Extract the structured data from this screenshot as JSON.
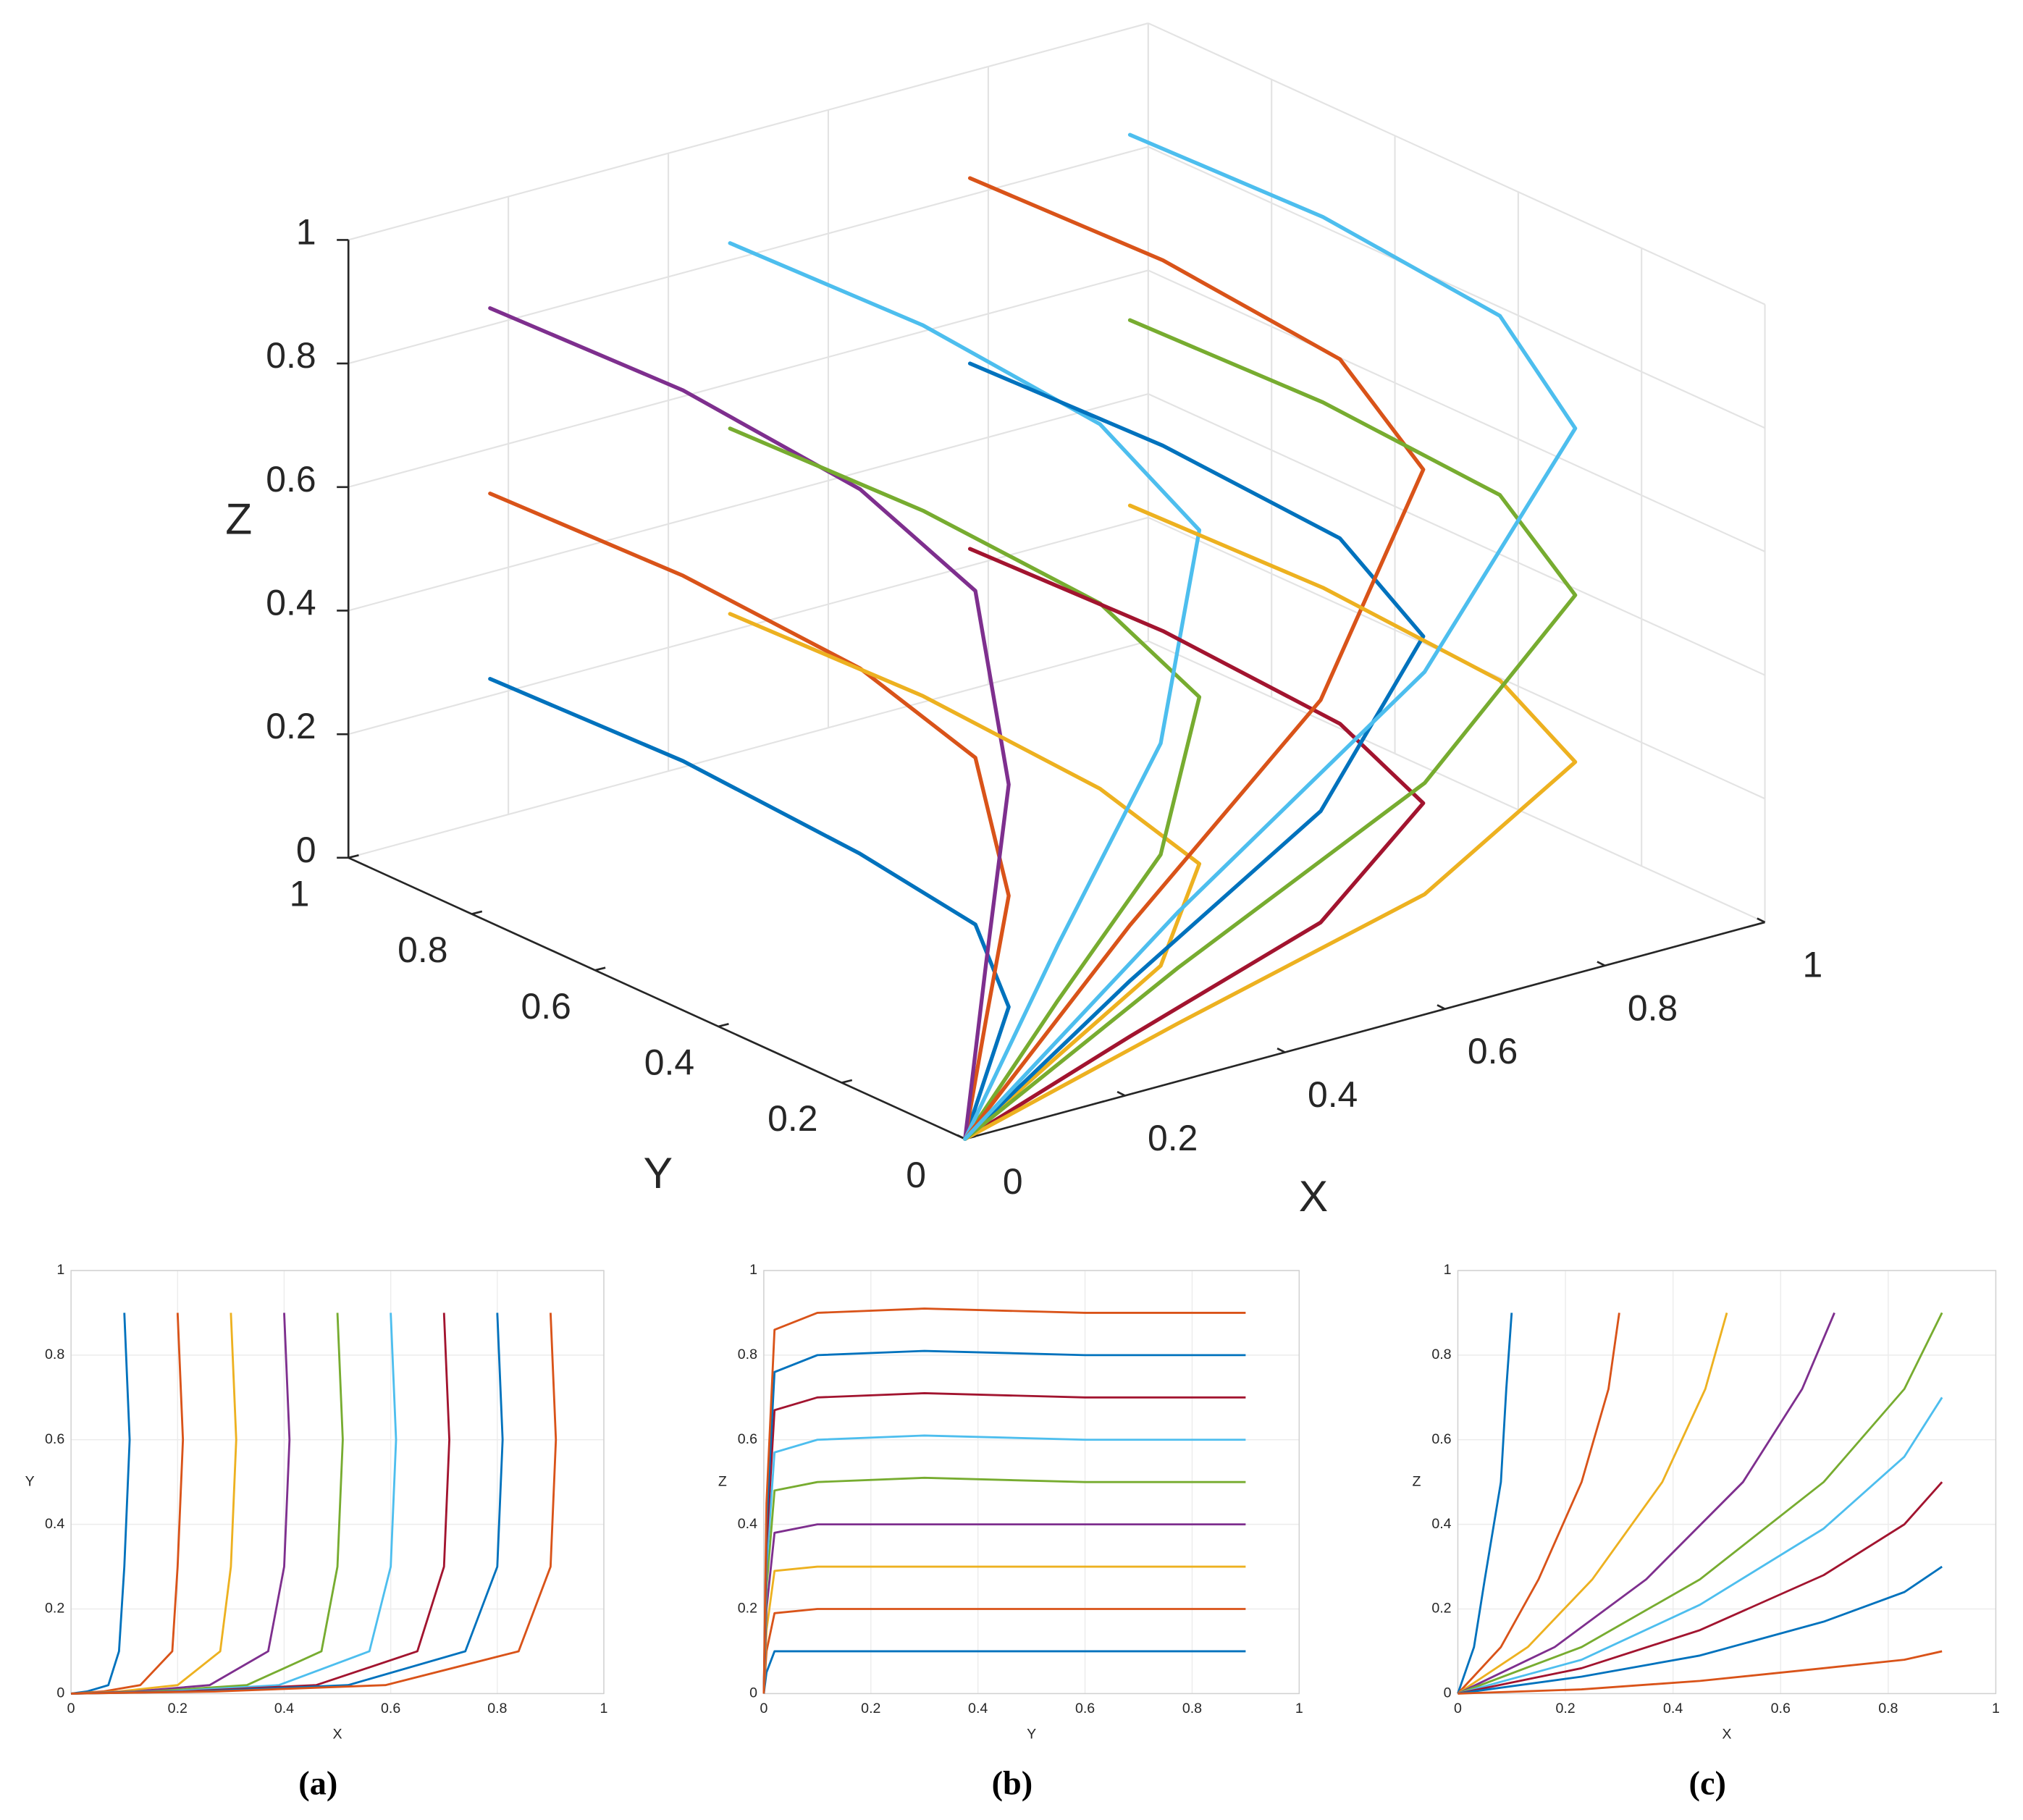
{
  "chart_data": [
    {
      "type": "line3d",
      "xlabel": "X",
      "ylabel": "Y",
      "zlabel": "Z",
      "xlim": [
        0,
        1
      ],
      "ylim": [
        0,
        1
      ],
      "zlim": [
        0,
        1
      ],
      "xticks": [
        0,
        0.2,
        0.4,
        0.6,
        0.8,
        1
      ],
      "yticks": [
        0,
        0.2,
        0.4,
        0.6,
        0.8,
        1
      ],
      "zticks": [
        0,
        0.2,
        0.4,
        0.6,
        0.8,
        1
      ],
      "grid": true,
      "series": [
        {
          "color": "#0072BD",
          "x": [
            0.1,
            0.11,
            0.1,
            0.09,
            0.07,
            0.03,
            0
          ],
          "y": [
            0.9,
            0.6,
            0.3,
            0.1,
            0.02,
            0.005,
            0
          ],
          "z": [
            0.3,
            0.3,
            0.29,
            0.27,
            0.18,
            0.09,
            0
          ]
        },
        {
          "color": "#D95319",
          "x": [
            0.1,
            0.11,
            0.1,
            0.09,
            0.07,
            0.03,
            0
          ],
          "y": [
            0.9,
            0.6,
            0.3,
            0.1,
            0.02,
            0.005,
            0
          ],
          "z": [
            0.6,
            0.6,
            0.59,
            0.54,
            0.36,
            0.18,
            0
          ]
        },
        {
          "color": "#7E2F8E",
          "x": [
            0.1,
            0.11,
            0.1,
            0.09,
            0.07,
            0.03,
            0
          ],
          "y": [
            0.9,
            0.6,
            0.3,
            0.1,
            0.02,
            0.005,
            0
          ],
          "z": [
            0.9,
            0.9,
            0.88,
            0.81,
            0.54,
            0.27,
            0
          ]
        },
        {
          "color": "#EDB120",
          "x": [
            0.4,
            0.41,
            0.4,
            0.37,
            0.26,
            0.12,
            0
          ],
          "y": [
            0.9,
            0.6,
            0.3,
            0.1,
            0.02,
            0.005,
            0
          ],
          "z": [
            0.3,
            0.3,
            0.29,
            0.27,
            0.18,
            0.09,
            0
          ]
        },
        {
          "color": "#77AC30",
          "x": [
            0.4,
            0.41,
            0.4,
            0.37,
            0.26,
            0.12,
            0
          ],
          "y": [
            0.9,
            0.6,
            0.3,
            0.1,
            0.02,
            0.005,
            0
          ],
          "z": [
            0.6,
            0.6,
            0.59,
            0.54,
            0.36,
            0.18,
            0
          ]
        },
        {
          "color": "#4DBEEE",
          "x": [
            0.4,
            0.41,
            0.4,
            0.37,
            0.26,
            0.12,
            0
          ],
          "y": [
            0.9,
            0.6,
            0.3,
            0.1,
            0.02,
            0.005,
            0
          ],
          "z": [
            0.9,
            0.9,
            0.88,
            0.81,
            0.54,
            0.27,
            0
          ]
        },
        {
          "color": "#A2142F",
          "x": [
            0.7,
            0.71,
            0.7,
            0.65,
            0.46,
            0.21,
            0
          ],
          "y": [
            0.9,
            0.6,
            0.3,
            0.1,
            0.02,
            0.005,
            0
          ],
          "z": [
            0.3,
            0.3,
            0.29,
            0.27,
            0.18,
            0.09,
            0
          ]
        },
        {
          "color": "#0072BD",
          "x": [
            0.7,
            0.71,
            0.7,
            0.65,
            0.46,
            0.21,
            0
          ],
          "y": [
            0.9,
            0.6,
            0.3,
            0.1,
            0.02,
            0.005,
            0
          ],
          "z": [
            0.6,
            0.6,
            0.59,
            0.54,
            0.36,
            0.18,
            0
          ]
        },
        {
          "color": "#D95319",
          "x": [
            0.7,
            0.71,
            0.7,
            0.65,
            0.46,
            0.21,
            0
          ],
          "y": [
            0.9,
            0.6,
            0.3,
            0.1,
            0.02,
            0.005,
            0
          ],
          "z": [
            0.9,
            0.9,
            0.88,
            0.81,
            0.54,
            0.27,
            0
          ]
        },
        {
          "color": "#EDB120",
          "x": [
            0.9,
            0.91,
            0.9,
            0.84,
            0.59,
            0.27,
            0
          ],
          "y": [
            0.9,
            0.6,
            0.3,
            0.1,
            0.02,
            0.005,
            0
          ],
          "z": [
            0.3,
            0.3,
            0.29,
            0.27,
            0.18,
            0.09,
            0
          ]
        },
        {
          "color": "#77AC30",
          "x": [
            0.9,
            0.91,
            0.9,
            0.84,
            0.59,
            0.27,
            0
          ],
          "y": [
            0.9,
            0.6,
            0.3,
            0.1,
            0.02,
            0.005,
            0
          ],
          "z": [
            0.6,
            0.6,
            0.59,
            0.54,
            0.36,
            0.18,
            0
          ]
        },
        {
          "color": "#4DBEEE",
          "x": [
            0.9,
            0.91,
            0.9,
            0.84,
            0.59,
            0.27,
            0
          ],
          "y": [
            0.9,
            0.6,
            0.3,
            0.1,
            0.02,
            0.005,
            0
          ],
          "z": [
            0.9,
            0.9,
            0.88,
            0.81,
            0.54,
            0.27,
            0
          ]
        }
      ]
    },
    {
      "type": "line",
      "caption": "(a)",
      "xlabel": "X",
      "ylabel": "Y",
      "xlim": [
        0,
        1
      ],
      "ylim": [
        0,
        1
      ],
      "xticks": [
        0,
        0.2,
        0.4,
        0.6,
        0.8,
        1
      ],
      "yticks": [
        0,
        0.2,
        0.4,
        0.6,
        0.8,
        1
      ],
      "grid": true,
      "series": [
        {
          "color": "#0072BD",
          "x": [
            0.1,
            0.11,
            0.1,
            0.09,
            0.07,
            0.03,
            0
          ],
          "values": [
            0.9,
            0.6,
            0.3,
            0.1,
            0.02,
            0.005,
            0
          ]
        },
        {
          "color": "#D95319",
          "x": [
            0.2,
            0.21,
            0.2,
            0.19,
            0.13,
            0.06,
            0
          ],
          "values": [
            0.9,
            0.6,
            0.3,
            0.1,
            0.02,
            0.005,
            0
          ]
        },
        {
          "color": "#EDB120",
          "x": [
            0.3,
            0.31,
            0.3,
            0.28,
            0.2,
            0.09,
            0
          ],
          "values": [
            0.9,
            0.6,
            0.3,
            0.1,
            0.02,
            0.005,
            0
          ]
        },
        {
          "color": "#7E2F8E",
          "x": [
            0.4,
            0.41,
            0.4,
            0.37,
            0.26,
            0.12,
            0
          ],
          "values": [
            0.9,
            0.6,
            0.3,
            0.1,
            0.02,
            0.005,
            0
          ]
        },
        {
          "color": "#77AC30",
          "x": [
            0.5,
            0.51,
            0.5,
            0.47,
            0.33,
            0.15,
            0
          ],
          "values": [
            0.9,
            0.6,
            0.3,
            0.1,
            0.02,
            0.005,
            0
          ]
        },
        {
          "color": "#4DBEEE",
          "x": [
            0.6,
            0.61,
            0.6,
            0.56,
            0.39,
            0.18,
            0
          ],
          "values": [
            0.9,
            0.6,
            0.3,
            0.1,
            0.02,
            0.005,
            0
          ]
        },
        {
          "color": "#A2142F",
          "x": [
            0.7,
            0.71,
            0.7,
            0.65,
            0.46,
            0.21,
            0
          ],
          "values": [
            0.9,
            0.6,
            0.3,
            0.1,
            0.02,
            0.005,
            0
          ]
        },
        {
          "color": "#0072BD",
          "x": [
            0.8,
            0.81,
            0.8,
            0.74,
            0.52,
            0.24,
            0
          ],
          "values": [
            0.9,
            0.6,
            0.3,
            0.1,
            0.02,
            0.005,
            0
          ]
        },
        {
          "color": "#D95319",
          "x": [
            0.9,
            0.91,
            0.9,
            0.84,
            0.59,
            0.27,
            0
          ],
          "values": [
            0.9,
            0.6,
            0.3,
            0.1,
            0.02,
            0.005,
            0
          ]
        }
      ]
    },
    {
      "type": "line",
      "caption": "(b)",
      "xlabel": "Y",
      "ylabel": "Z",
      "xlim": [
        0,
        1
      ],
      "ylim": [
        0,
        1
      ],
      "xticks": [
        0,
        0.2,
        0.4,
        0.6,
        0.8,
        1
      ],
      "yticks": [
        0,
        0.2,
        0.4,
        0.6,
        0.8,
        1
      ],
      "grid": true,
      "series": [
        {
          "color": "#0072BD",
          "x": [
            0.9,
            0.6,
            0.3,
            0.1,
            0.02,
            0.005,
            0
          ],
          "values": [
            0.1,
            0.1,
            0.1,
            0.1,
            0.1,
            0.05,
            0
          ]
        },
        {
          "color": "#D95319",
          "x": [
            0.9,
            0.6,
            0.3,
            0.1,
            0.02,
            0.005,
            0
          ],
          "values": [
            0.2,
            0.2,
            0.2,
            0.2,
            0.19,
            0.1,
            0
          ]
        },
        {
          "color": "#EDB120",
          "x": [
            0.9,
            0.6,
            0.3,
            0.1,
            0.02,
            0.005,
            0
          ],
          "values": [
            0.3,
            0.3,
            0.3,
            0.3,
            0.29,
            0.15,
            0
          ]
        },
        {
          "color": "#7E2F8E",
          "x": [
            0.9,
            0.6,
            0.3,
            0.1,
            0.02,
            0.005,
            0
          ],
          "values": [
            0.4,
            0.4,
            0.4,
            0.4,
            0.38,
            0.2,
            0
          ]
        },
        {
          "color": "#77AC30",
          "x": [
            0.9,
            0.6,
            0.3,
            0.1,
            0.02,
            0.005,
            0
          ],
          "values": [
            0.5,
            0.5,
            0.51,
            0.5,
            0.48,
            0.25,
            0
          ]
        },
        {
          "color": "#4DBEEE",
          "x": [
            0.9,
            0.6,
            0.3,
            0.1,
            0.02,
            0.005,
            0
          ],
          "values": [
            0.6,
            0.6,
            0.61,
            0.6,
            0.57,
            0.3,
            0
          ]
        },
        {
          "color": "#A2142F",
          "x": [
            0.9,
            0.6,
            0.3,
            0.1,
            0.02,
            0.005,
            0
          ],
          "values": [
            0.7,
            0.7,
            0.71,
            0.7,
            0.67,
            0.35,
            0
          ]
        },
        {
          "color": "#0072BD",
          "x": [
            0.9,
            0.6,
            0.3,
            0.1,
            0.02,
            0.005,
            0
          ],
          "values": [
            0.8,
            0.8,
            0.81,
            0.8,
            0.76,
            0.4,
            0
          ]
        },
        {
          "color": "#D95319",
          "x": [
            0.9,
            0.6,
            0.3,
            0.1,
            0.02,
            0.005,
            0
          ],
          "values": [
            0.9,
            0.9,
            0.91,
            0.9,
            0.86,
            0.45,
            0
          ]
        }
      ]
    },
    {
      "type": "line",
      "caption": "(c)",
      "xlabel": "X",
      "ylabel": "Z",
      "xlim": [
        0,
        1
      ],
      "ylim": [
        0,
        1
      ],
      "xticks": [
        0,
        0.2,
        0.4,
        0.6,
        0.8,
        1
      ],
      "yticks": [
        0,
        0.2,
        0.4,
        0.6,
        0.8,
        1
      ],
      "grid": true,
      "series": [
        {
          "color": "#0072BD",
          "x": [
            0.1,
            0.09,
            0.08,
            0.05,
            0.03,
            0
          ],
          "values": [
            0.9,
            0.72,
            0.5,
            0.27,
            0.11,
            0
          ]
        },
        {
          "color": "#D95319",
          "x": [
            0.3,
            0.28,
            0.23,
            0.15,
            0.08,
            0
          ],
          "values": [
            0.9,
            0.72,
            0.5,
            0.27,
            0.11,
            0
          ]
        },
        {
          "color": "#EDB120",
          "x": [
            0.5,
            0.46,
            0.38,
            0.25,
            0.13,
            0
          ],
          "values": [
            0.9,
            0.72,
            0.5,
            0.27,
            0.11,
            0
          ]
        },
        {
          "color": "#7E2F8E",
          "x": [
            0.7,
            0.64,
            0.53,
            0.35,
            0.18,
            0
          ],
          "values": [
            0.9,
            0.72,
            0.5,
            0.27,
            0.11,
            0
          ]
        },
        {
          "color": "#77AC30",
          "x": [
            0.9,
            0.83,
            0.68,
            0.45,
            0.23,
            0
          ],
          "values": [
            0.9,
            0.72,
            0.5,
            0.27,
            0.11,
            0
          ]
        },
        {
          "color": "#4DBEEE",
          "x": [
            0.9,
            0.83,
            0.68,
            0.45,
            0.23,
            0
          ],
          "values": [
            0.7,
            0.56,
            0.39,
            0.21,
            0.08,
            0
          ]
        },
        {
          "color": "#A2142F",
          "x": [
            0.9,
            0.83,
            0.68,
            0.45,
            0.23,
            0
          ],
          "values": [
            0.5,
            0.4,
            0.28,
            0.15,
            0.06,
            0
          ]
        },
        {
          "color": "#0072BD",
          "x": [
            0.9,
            0.83,
            0.68,
            0.45,
            0.23,
            0
          ],
          "values": [
            0.3,
            0.24,
            0.17,
            0.09,
            0.04,
            0
          ]
        },
        {
          "color": "#D95319",
          "x": [
            0.9,
            0.83,
            0.68,
            0.45,
            0.23,
            0
          ],
          "values": [
            0.1,
            0.08,
            0.06,
            0.03,
            0.01,
            0
          ]
        }
      ]
    }
  ]
}
